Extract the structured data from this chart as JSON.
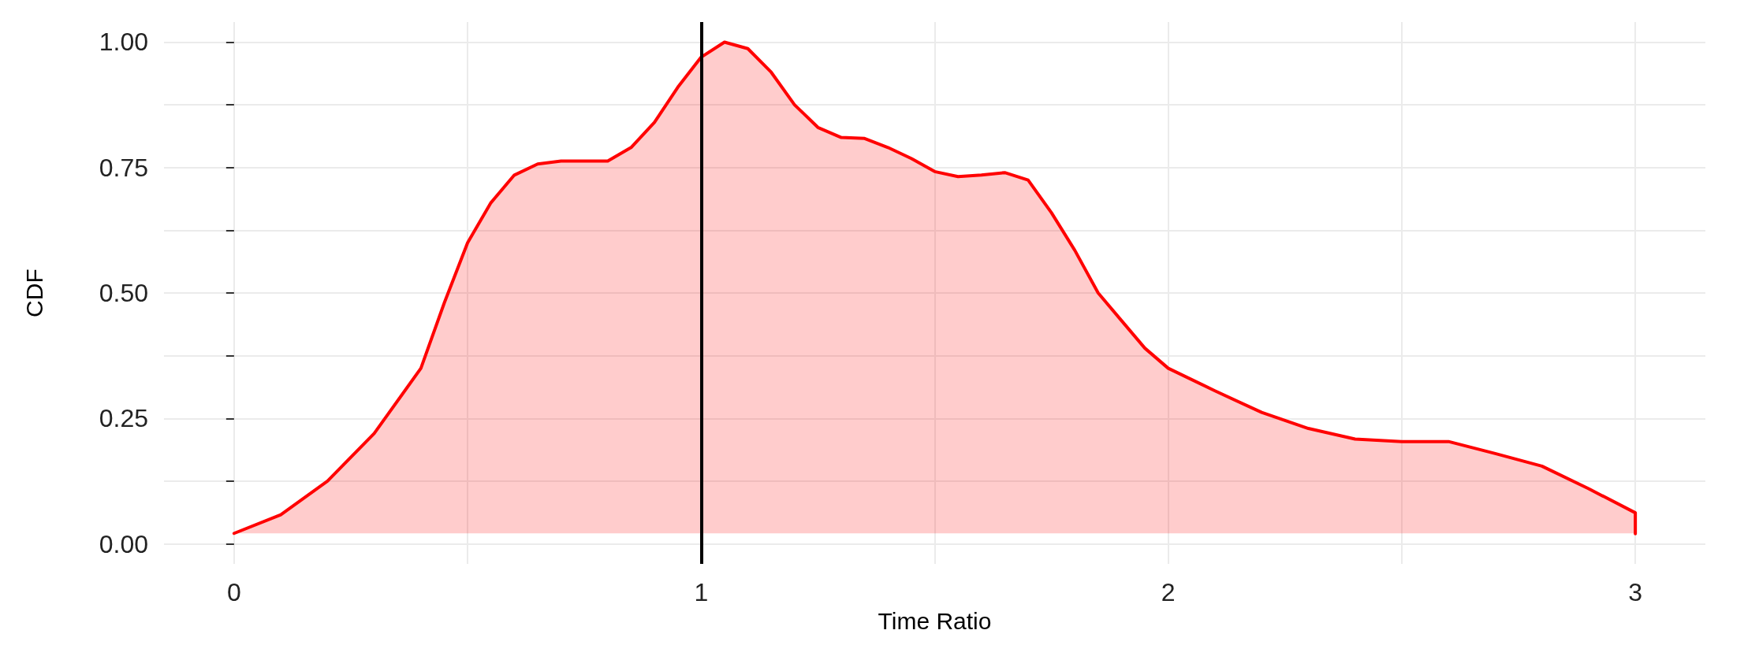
{
  "chart_data": {
    "type": "area",
    "xlabel": "Time Ratio",
    "ylabel": "CDF",
    "x": [
      0,
      0.1,
      0.2,
      0.3,
      0.4,
      0.45,
      0.5,
      0.55,
      0.6,
      0.65,
      0.7,
      0.8,
      0.85,
      0.9,
      0.95,
      1.0,
      1.05,
      1.1,
      1.15,
      1.2,
      1.25,
      1.3,
      1.35,
      1.4,
      1.45,
      1.5,
      1.55,
      1.6,
      1.65,
      1.7,
      1.75,
      1.8,
      1.85,
      1.9,
      1.95,
      2.0,
      2.1,
      2.2,
      2.3,
      2.4,
      2.5,
      2.6,
      2.7,
      2.8,
      2.9,
      3.0,
      3.0
    ],
    "series": [
      {
        "color": "#ff0000",
        "values": [
          0.021,
          0.058,
          0.125,
          0.22,
          0.35,
          0.48,
          0.6,
          0.68,
          0.735,
          0.757,
          0.763,
          0.763,
          0.79,
          0.84,
          0.91,
          0.97,
          1.0,
          0.987,
          0.94,
          0.875,
          0.83,
          0.81,
          0.808,
          0.79,
          0.768,
          0.742,
          0.732,
          0.735,
          0.74,
          0.725,
          0.66,
          0.585,
          0.5,
          0.445,
          0.39,
          0.35,
          0.305,
          0.262,
          0.23,
          0.209,
          0.204,
          0.204,
          0.18,
          0.155,
          0.11,
          0.062,
          0.02
        ]
      }
    ],
    "xlim": [
      -0.15,
      3.15
    ],
    "xticks": [
      0,
      {
        "value": 0.5,
        "label": null
      },
      1,
      {
        "value": 1.5,
        "label": null
      },
      2,
      {
        "value": 2.5,
        "label": null
      },
      3
    ],
    "ylim": [
      -0.04,
      1.04
    ],
    "yticks": [
      {
        "value": 0,
        "label": "0.00"
      },
      {
        "value": 0.125,
        "label": null
      },
      {
        "value": 0.25,
        "label": "0.25"
      },
      {
        "value": 0.375,
        "label": null
      },
      {
        "value": 0.5,
        "label": "0.50"
      },
      {
        "value": 0.625,
        "label": null
      },
      {
        "value": 0.75,
        "label": "0.75"
      },
      {
        "value": 0.875,
        "label": null
      },
      {
        "value": 1,
        "label": "1.00"
      }
    ],
    "ref_lines": [
      {
        "axis": "x",
        "value": 1,
        "color": "#000000"
      }
    ],
    "grid": true,
    "marker": "none",
    "line_style": "solid"
  }
}
